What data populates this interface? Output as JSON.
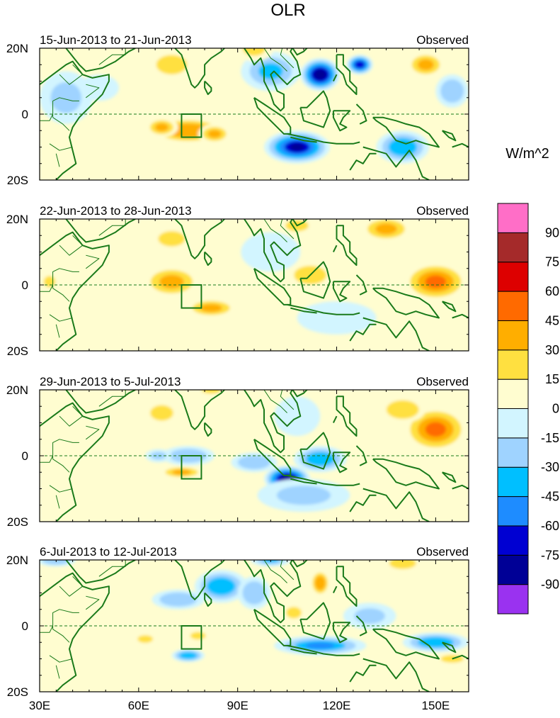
{
  "chart_data": {
    "type": "heatmap",
    "title": "OLR",
    "units": "W/m^2",
    "source_label": "Observed",
    "x_ticks": [
      "30E",
      "60E",
      "90E",
      "120E",
      "150E"
    ],
    "x_tick_values": [
      30,
      60,
      90,
      120,
      150
    ],
    "xlim": [
      30,
      160
    ],
    "y_ticks": [
      "20N",
      "0",
      "20S"
    ],
    "y_tick_values": [
      20,
      0,
      -20
    ],
    "ylim": [
      -20,
      20
    ],
    "box_region": {
      "lon": [
        73,
        79
      ],
      "lat": [
        -7,
        0
      ]
    },
    "panels": [
      {
        "period": "15-Jun-2013 to 21-Jun-2013",
        "anomalies": [
          {
            "lon": 115,
            "lat": 12,
            "value": -90,
            "rx": 6,
            "ry": 5
          },
          {
            "lon": 108,
            "lat": -10,
            "value": -80,
            "rx": 10,
            "ry": 5
          },
          {
            "lon": 127,
            "lat": 15,
            "value": -70,
            "rx": 4,
            "ry": 3
          },
          {
            "lon": 100,
            "lat": 13,
            "value": -35,
            "rx": 9,
            "ry": 6
          },
          {
            "lon": 140,
            "lat": -10,
            "value": -40,
            "rx": 8,
            "ry": 5
          },
          {
            "lon": 155,
            "lat": 7,
            "value": -30,
            "rx": 5,
            "ry": 5
          },
          {
            "lon": 38,
            "lat": 5,
            "value": -20,
            "rx": 8,
            "ry": 8
          },
          {
            "lon": 48,
            "lat": 8,
            "value": -15,
            "rx": 6,
            "ry": 4
          },
          {
            "lon": 75,
            "lat": -5,
            "value": 40,
            "rx": 12,
            "ry": 4
          },
          {
            "lon": 67,
            "lat": -4,
            "value": 30,
            "rx": 5,
            "ry": 3
          },
          {
            "lon": 83,
            "lat": -6,
            "value": 35,
            "rx": 5,
            "ry": 3
          },
          {
            "lon": 147,
            "lat": 15,
            "value": 30,
            "rx": 6,
            "ry": 4
          },
          {
            "lon": 95,
            "lat": 20,
            "value": 20,
            "rx": 6,
            "ry": 4
          },
          {
            "lon": 70,
            "lat": 15,
            "value": 15,
            "rx": 8,
            "ry": 5
          }
        ]
      },
      {
        "period": "22-Jun-2013 to 28-Jun-2013",
        "anomalies": [
          {
            "lon": 70,
            "lat": 1,
            "value": 35,
            "rx": 9,
            "ry": 5
          },
          {
            "lon": 82,
            "lat": -7,
            "value": 35,
            "rx": 8,
            "ry": 3
          },
          {
            "lon": 150,
            "lat": 1,
            "value": 45,
            "rx": 10,
            "ry": 6
          },
          {
            "lon": 135,
            "lat": 17,
            "value": 30,
            "rx": 8,
            "ry": 4
          },
          {
            "lon": 112,
            "lat": 3,
            "value": 25,
            "rx": 7,
            "ry": 4
          },
          {
            "lon": 70,
            "lat": 14,
            "value": 20,
            "rx": 7,
            "ry": 4
          },
          {
            "lon": 33,
            "lat": 1,
            "value": 20,
            "rx": 3,
            "ry": 3
          },
          {
            "lon": 108,
            "lat": 18,
            "value": 15,
            "rx": 6,
            "ry": 3
          },
          {
            "lon": 100,
            "lat": 10,
            "value": -15,
            "rx": 9,
            "ry": 6
          },
          {
            "lon": 120,
            "lat": -10,
            "value": -15,
            "rx": 12,
            "ry": 5
          }
        ]
      },
      {
        "period": "29-Jun-2013 to 5-Jul-2013",
        "anomalies": [
          {
            "lon": 105,
            "lat": -7,
            "value": -85,
            "rx": 7,
            "ry": 4
          },
          {
            "lon": 115,
            "lat": -1,
            "value": -40,
            "rx": 8,
            "ry": 4
          },
          {
            "lon": 95,
            "lat": -2,
            "value": -30,
            "rx": 7,
            "ry": 3
          },
          {
            "lon": 75,
            "lat": 0,
            "value": -25,
            "rx": 8,
            "ry": 3
          },
          {
            "lon": 66,
            "lat": 0,
            "value": -20,
            "rx": 4,
            "ry": 2
          },
          {
            "lon": 110,
            "lat": -12,
            "value": -20,
            "rx": 14,
            "ry": 5
          },
          {
            "lon": 108,
            "lat": 12,
            "value": -15,
            "rx": 7,
            "ry": 6
          },
          {
            "lon": 150,
            "lat": 8,
            "value": 45,
            "rx": 10,
            "ry": 7
          },
          {
            "lon": 140,
            "lat": 14,
            "value": 25,
            "rx": 7,
            "ry": 4
          },
          {
            "lon": 73,
            "lat": -5,
            "value": 30,
            "rx": 7,
            "ry": 2
          },
          {
            "lon": 67,
            "lat": 13,
            "value": 20,
            "rx": 6,
            "ry": 4
          },
          {
            "lon": 82,
            "lat": 20,
            "value": 15,
            "rx": 5,
            "ry": 2
          }
        ]
      },
      {
        "period": "6-Jul-2013 to 12-Jul-2013",
        "anomalies": [
          {
            "lon": 115,
            "lat": -6,
            "value": -50,
            "rx": 14,
            "ry": 3
          },
          {
            "lon": 150,
            "lat": -5,
            "value": -40,
            "rx": 10,
            "ry": 3
          },
          {
            "lon": 85,
            "lat": 12,
            "value": -40,
            "rx": 8,
            "ry": 5
          },
          {
            "lon": 72,
            "lat": 8,
            "value": -30,
            "rx": 8,
            "ry": 3
          },
          {
            "lon": 75,
            "lat": -9,
            "value": -40,
            "rx": 5,
            "ry": 2
          },
          {
            "lon": 95,
            "lat": 10,
            "value": -30,
            "rx": 5,
            "ry": 5
          },
          {
            "lon": 100,
            "lat": 20,
            "value": -35,
            "rx": 6,
            "ry": 2
          },
          {
            "lon": 35,
            "lat": 20,
            "value": -30,
            "rx": 6,
            "ry": 2
          },
          {
            "lon": 130,
            "lat": 3,
            "value": -20,
            "rx": 8,
            "ry": 4
          },
          {
            "lon": 115,
            "lat": 13,
            "value": 40,
            "rx": 3,
            "ry": 4
          },
          {
            "lon": 107,
            "lat": 4,
            "value": 20,
            "rx": 4,
            "ry": 3
          },
          {
            "lon": 140,
            "lat": 19,
            "value": 20,
            "rx": 7,
            "ry": 3
          },
          {
            "lon": 78,
            "lat": -3,
            "value": 20,
            "rx": 4,
            "ry": 2
          },
          {
            "lon": 62,
            "lat": -4,
            "value": 20,
            "rx": 4,
            "ry": 2
          },
          {
            "lon": 155,
            "lat": -10,
            "value": 20,
            "rx": 6,
            "ry": 2
          }
        ]
      }
    ],
    "colorbar": {
      "levels": [
        -105,
        -90,
        -75,
        -60,
        -45,
        -30,
        -15,
        0,
        15,
        30,
        45,
        60,
        75,
        90,
        105
      ],
      "colors": [
        "#9a32f0",
        "#000096",
        "#0000d2",
        "#1e8cff",
        "#00bfff",
        "#9fd3ff",
        "#d2f5ff",
        "#fffdd0",
        "#ffe040",
        "#ffae00",
        "#ff6a00",
        "#dd0000",
        "#a52a2a",
        "#ff6ec7"
      ],
      "tick_labels": [
        "-90",
        "-75",
        "-60",
        "-45",
        "-30",
        "-15",
        "0",
        "15",
        "30",
        "45",
        "60",
        "75",
        "90"
      ]
    },
    "colors": {
      "coastline": "#1a7a1a",
      "equator": "#1a7a1a",
      "box": "#1a7a1a"
    }
  }
}
